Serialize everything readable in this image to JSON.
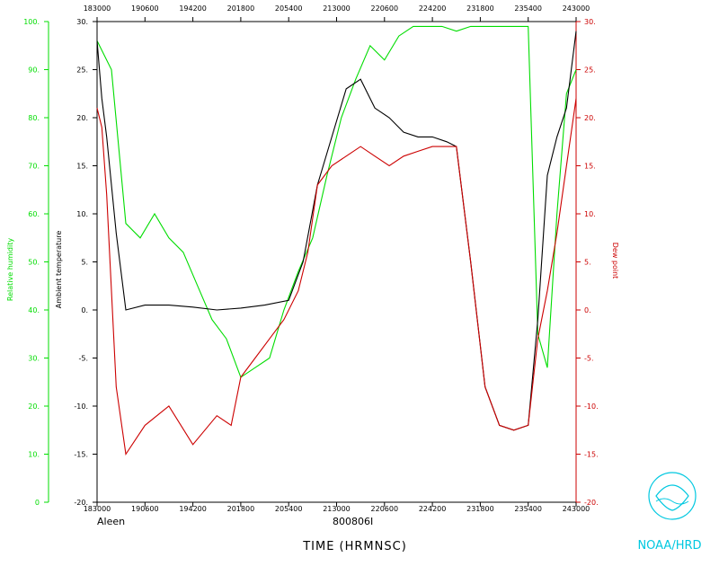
{
  "chart_data": {
    "type": "line",
    "x_ticks": [
      "183000",
      "190600",
      "194200",
      "201800",
      "205400",
      "213000",
      "220600",
      "224200",
      "231800",
      "235400",
      "243000"
    ],
    "axes": {
      "relative_humidity": {
        "label": "Relative humidity",
        "range": [
          0,
          100
        ],
        "ticks": [
          "0",
          "10.",
          "20.",
          "30.",
          "40.",
          "50.",
          "60.",
          "70.",
          "80.",
          "90.",
          "100."
        ],
        "color": "#00dd00"
      },
      "ambient_temperature": {
        "label": "Ambient temperature",
        "range": [
          -20,
          30
        ],
        "ticks": [
          "-20.",
          "-15.",
          "-10.",
          "-5.",
          "0.",
          "5.",
          "10.",
          "15.",
          "20.",
          "25.",
          "30."
        ],
        "color": "#000000"
      },
      "dew_point": {
        "label": "Dew point",
        "range": [
          -20,
          30
        ],
        "ticks": [
          "-20.",
          "-15.",
          "-10.",
          "-5.",
          "0.",
          "5.",
          "10.",
          "15.",
          "20.",
          "25.",
          "30."
        ],
        "color": "#cc0000"
      }
    },
    "series": [
      {
        "name": "Relative humidity",
        "axis": "relative_humidity",
        "color": "#00dd00",
        "points": [
          [
            0.0,
            96
          ],
          [
            0.03,
            90
          ],
          [
            0.06,
            58
          ],
          [
            0.09,
            55
          ],
          [
            0.12,
            60
          ],
          [
            0.15,
            55
          ],
          [
            0.18,
            52
          ],
          [
            0.21,
            45
          ],
          [
            0.24,
            38
          ],
          [
            0.27,
            34
          ],
          [
            0.3,
            26
          ],
          [
            0.33,
            28
          ],
          [
            0.36,
            30
          ],
          [
            0.39,
            40
          ],
          [
            0.42,
            48
          ],
          [
            0.45,
            55
          ],
          [
            0.48,
            68
          ],
          [
            0.51,
            80
          ],
          [
            0.54,
            88
          ],
          [
            0.57,
            95
          ],
          [
            0.6,
            92
          ],
          [
            0.63,
            97
          ],
          [
            0.66,
            99
          ],
          [
            0.69,
            99
          ],
          [
            0.72,
            99
          ],
          [
            0.75,
            98
          ],
          [
            0.78,
            99
          ],
          [
            0.81,
            99
          ],
          [
            0.84,
            99
          ],
          [
            0.87,
            99
          ],
          [
            0.9,
            99
          ],
          [
            0.92,
            35
          ],
          [
            0.94,
            28
          ],
          [
            0.96,
            60
          ],
          [
            0.98,
            85
          ],
          [
            1.0,
            90
          ]
        ]
      },
      {
        "name": "Ambient temperature",
        "axis": "ambient_temperature",
        "color": "#000000",
        "points": [
          [
            0.0,
            28
          ],
          [
            0.01,
            22
          ],
          [
            0.02,
            18
          ],
          [
            0.04,
            8
          ],
          [
            0.06,
            0
          ],
          [
            0.1,
            0.5
          ],
          [
            0.15,
            0.5
          ],
          [
            0.2,
            0.3
          ],
          [
            0.25,
            0
          ],
          [
            0.3,
            0.2
          ],
          [
            0.35,
            0.5
          ],
          [
            0.4,
            1
          ],
          [
            0.43,
            5
          ],
          [
            0.46,
            13
          ],
          [
            0.49,
            18
          ],
          [
            0.52,
            23
          ],
          [
            0.55,
            24
          ],
          [
            0.58,
            21
          ],
          [
            0.61,
            20
          ],
          [
            0.64,
            18.5
          ],
          [
            0.67,
            18
          ],
          [
            0.7,
            18
          ],
          [
            0.73,
            17.5
          ],
          [
            0.75,
            17
          ],
          [
            0.78,
            5
          ],
          [
            0.81,
            -8
          ],
          [
            0.84,
            -12
          ],
          [
            0.87,
            -12.5
          ],
          [
            0.9,
            -12
          ],
          [
            0.92,
            -1
          ],
          [
            0.94,
            14
          ],
          [
            0.96,
            18
          ],
          [
            0.98,
            21
          ],
          [
            1.0,
            29
          ]
        ]
      },
      {
        "name": "Dew point",
        "axis": "dew_point",
        "color": "#cc0000",
        "points": [
          [
            0.0,
            21
          ],
          [
            0.01,
            19
          ],
          [
            0.02,
            12
          ],
          [
            0.04,
            -8
          ],
          [
            0.06,
            -15
          ],
          [
            0.1,
            -12
          ],
          [
            0.15,
            -10
          ],
          [
            0.2,
            -14
          ],
          [
            0.25,
            -11
          ],
          [
            0.28,
            -12
          ],
          [
            0.3,
            -7
          ],
          [
            0.33,
            -5
          ],
          [
            0.36,
            -3
          ],
          [
            0.39,
            -1
          ],
          [
            0.42,
            2
          ],
          [
            0.44,
            6
          ],
          [
            0.46,
            13
          ],
          [
            0.49,
            15
          ],
          [
            0.52,
            16
          ],
          [
            0.55,
            17
          ],
          [
            0.58,
            16
          ],
          [
            0.61,
            15
          ],
          [
            0.64,
            16
          ],
          [
            0.67,
            16.5
          ],
          [
            0.7,
            17
          ],
          [
            0.73,
            17
          ],
          [
            0.75,
            17
          ],
          [
            0.78,
            5
          ],
          [
            0.81,
            -8
          ],
          [
            0.84,
            -12
          ],
          [
            0.87,
            -12.5
          ],
          [
            0.9,
            -12
          ],
          [
            0.92,
            -3
          ],
          [
            0.94,
            2
          ],
          [
            0.96,
            8
          ],
          [
            0.98,
            15
          ],
          [
            1.0,
            22
          ]
        ]
      }
    ]
  },
  "footer": {
    "storm_name": "Aleen",
    "flight_id": "800806I",
    "time_axis_label": "TIME (HRMNSC)",
    "logo_text": "NOAA/HRD",
    "logo_mark": "noaa",
    "logo_color": "#00c8e0"
  }
}
